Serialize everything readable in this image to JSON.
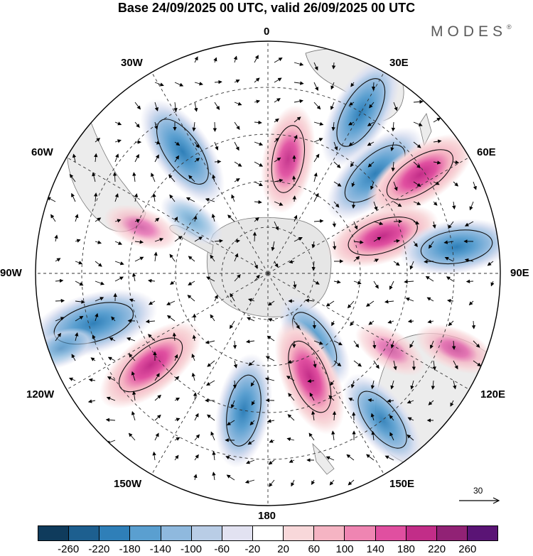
{
  "title": "Base 24/09/2025 00 UTC, valid 26/09/2025 00 UTC",
  "brand": "MODES",
  "brand_mark": "®",
  "longitude_labels": {
    "lon_0": "0",
    "lon_30e": "30E",
    "lon_60e": "60E",
    "lon_90e": "90E",
    "lon_120e": "120E",
    "lon_150e": "150E",
    "lon_180": "180",
    "lon_150w": "150W",
    "lon_120w": "120W",
    "lon_90w": "90W",
    "lon_60w": "60W",
    "lon_30w": "30W"
  },
  "reference_vector": {
    "label": "30"
  },
  "colorbar": {
    "colors": [
      "#0f3b5c",
      "#1d5f8f",
      "#2f7fb8",
      "#5a9fd0",
      "#8fb9de",
      "#b9cde6",
      "#e2e2f1",
      "#ffffff",
      "#f8d8da",
      "#f5b4c3",
      "#ef85b2",
      "#e04fa0",
      "#c22d88",
      "#912275",
      "#5a1475"
    ],
    "ticks": [
      "-260",
      "-220",
      "-180",
      "-140",
      "-100",
      "-60",
      "-20",
      "20",
      "60",
      "100",
      "140",
      "180",
      "220",
      "260"
    ]
  },
  "anomalies": [
    {
      "lon": 10,
      "r": 0.5,
      "value": 160
    },
    {
      "lon": 30,
      "r": 0.8,
      "value": -200
    },
    {
      "lon": 47,
      "r": 0.63,
      "value": -200
    },
    {
      "lon": 57,
      "r": 0.78,
      "value": 200
    },
    {
      "lon": 72,
      "r": 0.52,
      "value": 180
    },
    {
      "lon": 82,
      "r": 0.82,
      "value": -180
    },
    {
      "lon": 112,
      "r": 0.87,
      "value": 80
    },
    {
      "lon": 122,
      "r": 0.62,
      "value": 60
    },
    {
      "lon": 145,
      "r": 0.35,
      "value": -140
    },
    {
      "lon": 142,
      "r": 0.8,
      "value": -160
    },
    {
      "lon": 158,
      "r": 0.48,
      "value": 200
    },
    {
      "lon": 190,
      "r": 0.6,
      "value": -180
    },
    {
      "lon": 232,
      "r": 0.64,
      "value": 200
    },
    {
      "lon": 254,
      "r": 0.78,
      "value": -230
    },
    {
      "lon": 305,
      "r": 0.4,
      "value": -40
    },
    {
      "lon": 325,
      "r": 0.64,
      "value": -200
    },
    {
      "lon": 290,
      "r": 0.58,
      "value": 60
    },
    {
      "lon": 250,
      "r": 0.95,
      "value": -40
    }
  ]
}
